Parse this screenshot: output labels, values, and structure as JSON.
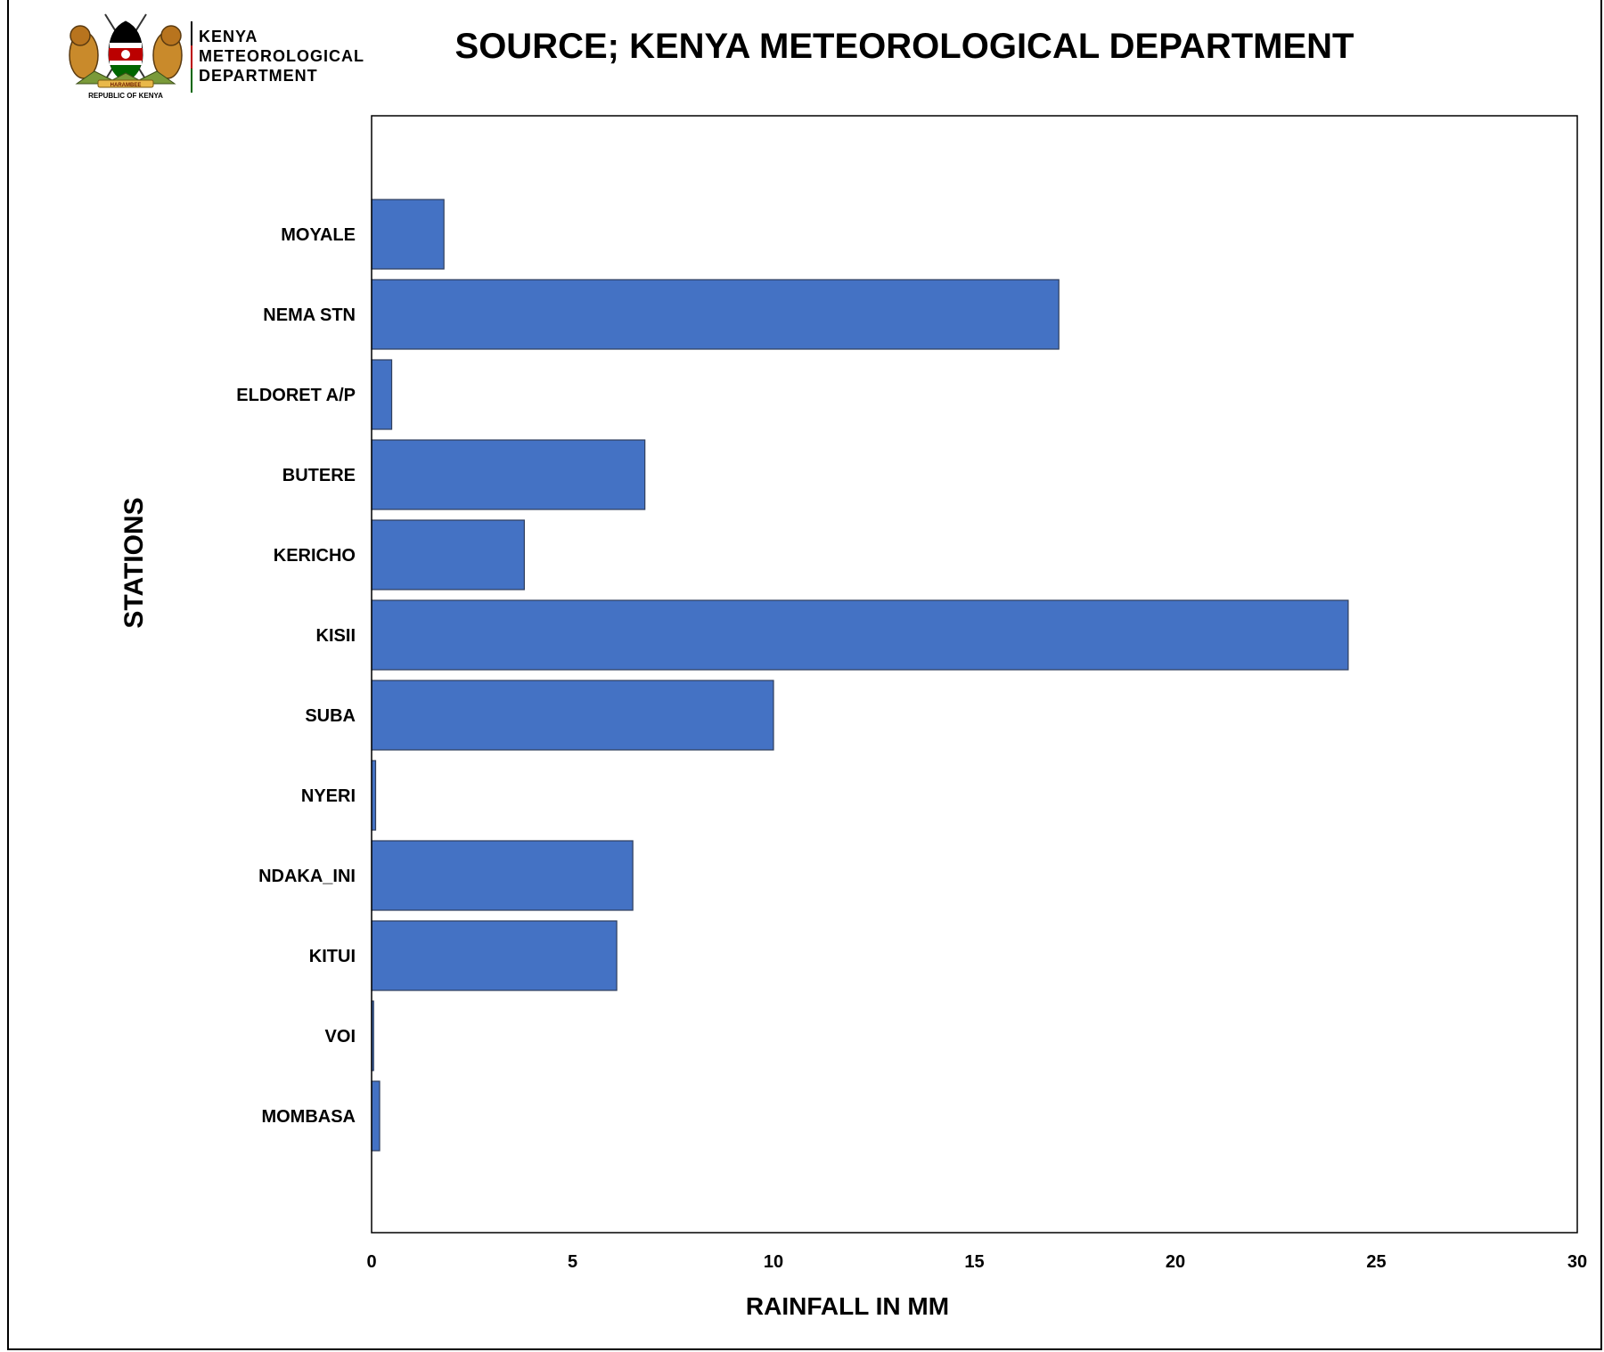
{
  "header": {
    "logo_caption": "REPUBLIC OF KENYA",
    "logo_motto": "HARAMBEE",
    "dept_line1": "KENYA",
    "dept_line2": "METEOROLOGICAL",
    "dept_line3": "DEPARTMENT",
    "source_title": "SOURCE; KENYA METEOROLOGICAL DEPARTMENT"
  },
  "colors": {
    "bar_fill": "#4472C4",
    "bar_stroke": "#2F3E5C",
    "kenya_black": "#000000",
    "kenya_red": "#BB0000",
    "kenya_green": "#006600"
  },
  "chart_data": {
    "type": "bar",
    "orientation": "horizontal",
    "xlabel": "RAINFALL IN MM",
    "ylabel": "STATIONS",
    "xlim": [
      0,
      30
    ],
    "xticks": [
      0,
      5,
      10,
      15,
      20,
      25,
      30
    ],
    "grid": false,
    "legend": "none",
    "categories": [
      "MOYALE",
      "NEMA STN",
      "ELDORET A/P",
      "BUTERE",
      "KERICHO",
      "KISII",
      "SUBA",
      "NYERI",
      "NDAKA_INI",
      "KITUI",
      "VOI",
      "MOMBASA"
    ],
    "values": [
      1.8,
      17.1,
      0.5,
      6.8,
      3.8,
      24.3,
      10.0,
      0.1,
      6.5,
      6.1,
      0.05,
      0.2
    ]
  }
}
